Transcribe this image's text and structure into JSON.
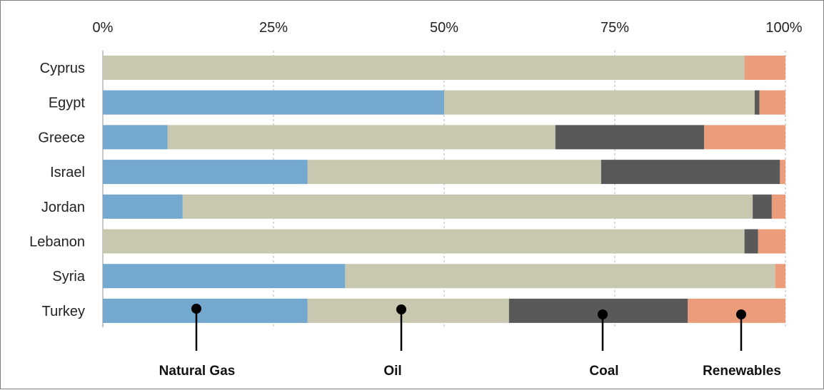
{
  "chart_data": {
    "type": "bar",
    "orientation": "horizontal",
    "stacked": true,
    "percent_stacked": true,
    "x_ticks": [
      "0%",
      "25%",
      "50%",
      "75%",
      "100%"
    ],
    "xlim": [
      0,
      100
    ],
    "categories": [
      "Cyprus",
      "Egypt",
      "Greece",
      "Israel",
      "Jordan",
      "Lebanon",
      "Syria",
      "Turkey"
    ],
    "series": [
      {
        "name": "Natural Gas",
        "color": "#75a8cf",
        "values": [
          0,
          50,
          9.5,
          30,
          11.7,
          0,
          35.5,
          30
        ]
      },
      {
        "name": "Oil",
        "color": "#c8c8b0",
        "values": [
          94,
          45.5,
          56.8,
          43,
          83.5,
          94,
          63,
          29.5
        ]
      },
      {
        "name": "Coal",
        "color": "#595959",
        "values": [
          0,
          0.7,
          21.8,
          26.2,
          2.8,
          2,
          0,
          26.2
        ]
      },
      {
        "name": "Renewables",
        "color": "#eb9c7b",
        "values": [
          6,
          3.8,
          11.9,
          0.8,
          2,
          4,
          1.5,
          14.3
        ]
      }
    ],
    "grid": true,
    "legend": "bottom, callout markers on Turkey bar"
  }
}
